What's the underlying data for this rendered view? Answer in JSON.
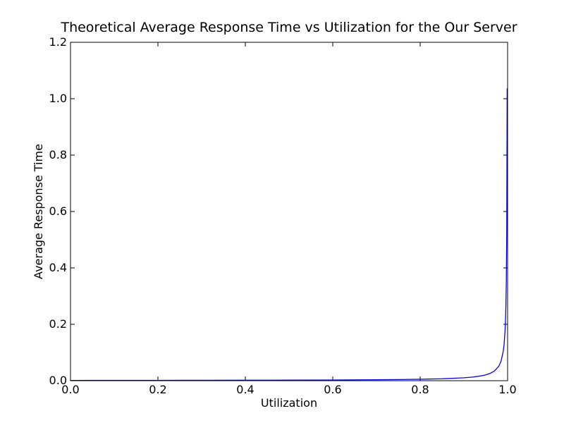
{
  "chart_data": {
    "type": "line",
    "title": "Theoretical Average Response Time vs Utilization for the Our Server",
    "xlabel": "Utilization",
    "ylabel": "Average Response Time",
    "xlim": [
      0.0,
      1.0
    ],
    "ylim": [
      0.0,
      1.2
    ],
    "x_ticks": [
      "0.0",
      "0.2",
      "0.4",
      "0.6",
      "0.8",
      "1.0"
    ],
    "y_ticks": [
      "0.0",
      "0.2",
      "0.4",
      "0.6",
      "0.8",
      "1.0",
      "1.2"
    ],
    "grid": false,
    "series": [
      {
        "color": "#0000ff",
        "x": [
          0.0,
          0.1,
          0.2,
          0.3,
          0.4,
          0.5,
          0.6,
          0.7,
          0.75,
          0.8,
          0.85,
          0.9,
          0.92,
          0.94,
          0.95,
          0.96,
          0.97,
          0.98,
          0.985,
          0.99,
          0.992,
          0.994,
          0.995,
          0.996,
          0.997,
          0.998,
          0.999
        ],
        "y": [
          0.00103,
          0.00115,
          0.0013,
          0.00148,
          0.00173,
          0.00207,
          0.00259,
          0.00345,
          0.00414,
          0.00518,
          0.0069,
          0.0104,
          0.0129,
          0.0173,
          0.0207,
          0.0259,
          0.0345,
          0.0518,
          0.069,
          0.104,
          0.129,
          0.173,
          0.207,
          0.259,
          0.345,
          0.518,
          1.035
        ]
      }
    ]
  }
}
